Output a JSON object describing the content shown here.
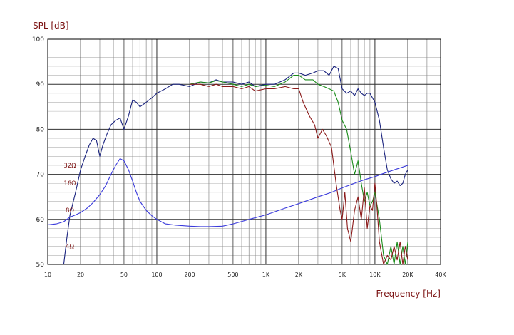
{
  "chart_data": {
    "type": "line",
    "title": "",
    "ylabel": "SPL [dB]",
    "xlabel": "Frequency [Hz]",
    "x_scale": "log",
    "xlim": [
      10,
      40000
    ],
    "ylim": [
      50,
      100
    ],
    "grid": true,
    "y_ticks": [
      {
        "value": 50,
        "label": "50"
      },
      {
        "value": 60,
        "label": "60"
      },
      {
        "value": 70,
        "label": "70"
      },
      {
        "value": 80,
        "label": "80"
      },
      {
        "value": 90,
        "label": "90"
      },
      {
        "value": 100,
        "label": "100"
      }
    ],
    "x_ticks": [
      {
        "value": 10,
        "label": "10"
      },
      {
        "value": 20,
        "label": "20"
      },
      {
        "value": 50,
        "label": "50"
      },
      {
        "value": 100,
        "label": "100"
      },
      {
        "value": 200,
        "label": "200"
      },
      {
        "value": 500,
        "label": "500"
      },
      {
        "value": 1000,
        "label": "1K"
      },
      {
        "value": 2000,
        "label": "2K"
      },
      {
        "value": 5000,
        "label": "5K"
      },
      {
        "value": 10000,
        "label": "10K"
      },
      {
        "value": 20000,
        "label": "20K"
      },
      {
        "value": 40000,
        "label": "40K"
      }
    ],
    "impedance_labels": [
      {
        "label": "32Ω",
        "y": 72
      },
      {
        "label": "16Ω",
        "y": 68
      },
      {
        "label": "8Ω",
        "y": 62
      },
      {
        "label": "4Ω",
        "y": 54
      }
    ],
    "series": [
      {
        "color": "#1a237e",
        "x": [
          14,
          15,
          16,
          18,
          20,
          22,
          24,
          26,
          28,
          30,
          32,
          35,
          38,
          42,
          46,
          50,
          55,
          60,
          65,
          70,
          80,
          90,
          100,
          120,
          140,
          160,
          200,
          250,
          300,
          350,
          400,
          500,
          600,
          700,
          800,
          1000,
          1200,
          1500,
          1800,
          2000,
          2300,
          2700,
          3000,
          3400,
          3800,
          4200,
          4600,
          5000,
          5500,
          6000,
          6500,
          7000,
          7500,
          8000,
          8500,
          9000,
          10000,
          11000,
          12000,
          13000,
          14000,
          15000,
          16000,
          17000,
          18000,
          19000,
          20000
        ],
        "y": [
          50,
          56,
          61,
          66,
          71,
          74,
          76.5,
          78,
          77.5,
          74,
          76.5,
          79,
          81,
          82,
          82.5,
          80,
          83,
          86.5,
          86,
          85,
          86,
          87,
          88,
          89,
          90,
          90,
          89.5,
          90.5,
          90.3,
          91,
          90.5,
          90.5,
          90,
          90.5,
          89.5,
          90,
          90,
          91,
          92.5,
          92.5,
          92,
          92.5,
          93,
          93,
          92,
          94,
          93.5,
          89,
          88,
          88.5,
          87.5,
          89,
          88,
          87.5,
          88,
          88,
          86,
          82,
          76,
          71,
          69,
          68,
          68.5,
          67.5,
          68,
          70,
          71
        ]
      },
      {
        "color": "#1a8c1a",
        "x": [
          200,
          250,
          300,
          350,
          400,
          500,
          600,
          700,
          800,
          1000,
          1200,
          1500,
          1800,
          2000,
          2300,
          2700,
          3000,
          3400,
          3800,
          4200,
          4600,
          5000,
          5500,
          6000,
          6500,
          7000,
          7500,
          8000,
          8500,
          9000,
          9500,
          10000,
          11000,
          12000,
          13000,
          14000,
          15000,
          16000,
          17000,
          18000,
          19000,
          20000
        ],
        "y": [
          90,
          90.5,
          90.3,
          90.8,
          90.5,
          90,
          89.5,
          90,
          89.5,
          89.8,
          89.5,
          90.5,
          92,
          92,
          91,
          91,
          90,
          89.5,
          89,
          88.5,
          86,
          82,
          80,
          75,
          70,
          73,
          68,
          64,
          66,
          63,
          64,
          66,
          60,
          52,
          50,
          54,
          50,
          55,
          50,
          54,
          50,
          55
        ]
      },
      {
        "color": "#8b1a1a",
        "x": [
          200,
          250,
          300,
          350,
          400,
          500,
          600,
          700,
          800,
          1000,
          1200,
          1500,
          1800,
          2000,
          2200,
          2500,
          2800,
          3000,
          3300,
          3600,
          4000,
          4400,
          4800,
          5000,
          5300,
          5600,
          6000,
          6500,
          7000,
          7500,
          8000,
          8500,
          9000,
          9500,
          10000,
          10500,
          11000,
          12000,
          13000,
          14000,
          15000,
          16000,
          17000,
          18000,
          19000,
          20000
        ],
        "y": [
          90,
          90,
          89.5,
          90,
          89.5,
          89.5,
          89,
          89.5,
          88.5,
          89,
          89,
          89.5,
          89,
          89,
          86,
          83,
          81,
          78,
          80,
          78.5,
          76,
          68,
          62,
          60,
          66,
          58,
          55,
          62,
          65,
          60,
          67,
          58,
          63,
          62,
          68,
          62,
          55,
          50,
          52,
          51,
          54,
          51,
          55,
          50,
          54,
          51
        ]
      },
      {
        "color": "#3a3adb",
        "x": [
          10,
          12,
          14,
          16,
          18,
          20,
          23,
          26,
          30,
          34,
          38,
          42,
          46,
          50,
          55,
          60,
          65,
          70,
          80,
          90,
          100,
          120,
          150,
          200,
          250,
          300,
          400,
          500,
          700,
          1000,
          1500,
          2000,
          3000,
          4000,
          5000,
          6000,
          7000,
          8000,
          10000,
          12000,
          15000,
          20000
        ],
        "y": [
          58.8,
          59,
          59.5,
          60.5,
          61,
          61.5,
          62.5,
          63.7,
          65.5,
          67.5,
          70,
          72,
          73.5,
          73,
          71,
          68.5,
          66,
          64,
          62,
          60.8,
          60,
          59,
          58.7,
          58.5,
          58.4,
          58.4,
          58.5,
          59,
          60,
          61,
          62.5,
          63.5,
          65,
          66,
          67,
          67.7,
          68.3,
          68.8,
          69.5,
          70.2,
          71,
          72
        ]
      }
    ]
  }
}
